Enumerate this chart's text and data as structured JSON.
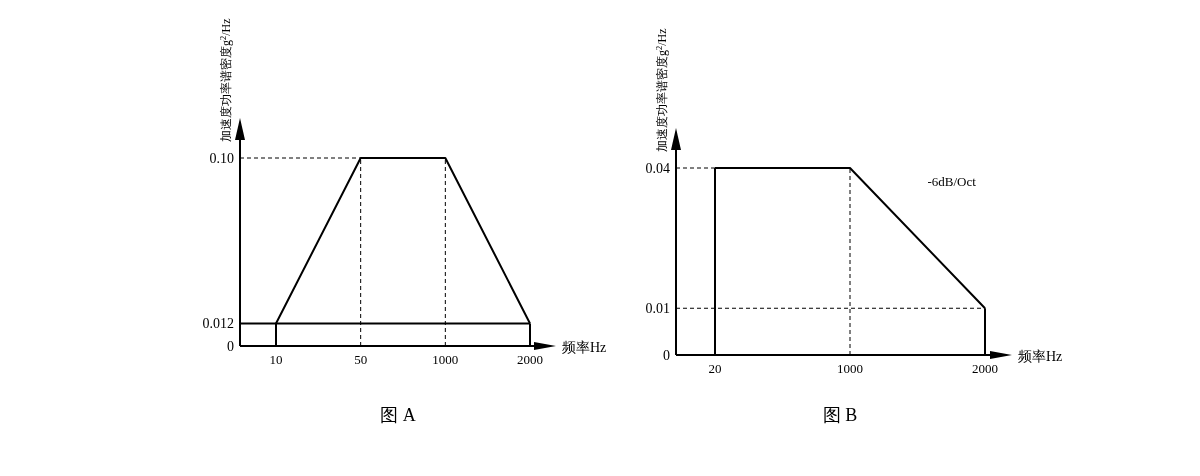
{
  "chart_data": [
    {
      "type": "line",
      "title": "图 A",
      "xlabel": "频率Hz",
      "ylabel": "加速度功率谱密度g$^{2}$/Hz",
      "categories": [
        "10",
        "50",
        "1000",
        "2000"
      ],
      "series": [
        {
          "color": "#000000",
          "values": [
            0.012,
            0.1,
            0.1,
            0.012
          ]
        }
      ],
      "ylim": [
        0,
        0.1
      ],
      "yticks": [
        0,
        0.012,
        {
          "value": 0.1,
          "label": "0.10"
        }
      ],
      "ref_lines": [
        {
          "axis": "y",
          "value": 0.1,
          "line_style": "dashed"
        },
        {
          "axis": "y",
          "value": 0.012,
          "line_style": "solid"
        },
        {
          "axis": "x",
          "value": "10",
          "line_style": "solid"
        },
        {
          "axis": "x",
          "value": "50",
          "line_style": "dashed"
        },
        {
          "axis": "x",
          "value": "1000",
          "line_style": "dashed"
        },
        {
          "axis": "x",
          "value": "2000",
          "line_style": "solid"
        }
      ],
      "grid": false
    },
    {
      "type": "line",
      "title": "图 B",
      "xlabel": "频率Hz",
      "ylabel": "加速度功率谱密度g$^{2}$/Hz",
      "categories": [
        "20",
        "1000",
        "2000"
      ],
      "series": [
        {
          "color": "#000000",
          "values": [
            0.04,
            0.04,
            0.01
          ]
        }
      ],
      "ylim": [
        0,
        0.04
      ],
      "yticks": [
        0,
        0.01,
        0.04
      ],
      "ref_lines": [
        {
          "axis": "y",
          "value": 0.04,
          "line_style": "dashed"
        },
        {
          "axis": "y",
          "value": 0.01,
          "line_style": "dashed"
        },
        {
          "axis": "x",
          "value": "20",
          "line_style": "solid"
        },
        {
          "axis": "x",
          "value": "1000",
          "line_style": "dashed"
        },
        {
          "axis": "x",
          "value": "2000",
          "line_style": "solid"
        }
      ],
      "annotations": [
        "-6dB/Oct"
      ],
      "grid": false
    }
  ]
}
